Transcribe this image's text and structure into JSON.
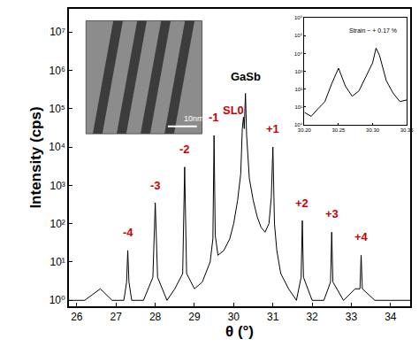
{
  "chart_data": [
    {
      "type": "line",
      "x_label": "θ (°)",
      "y_label": "Intensity (cps)",
      "log": "y",
      "color": "#000000",
      "x": [
        25.8,
        26.2,
        26.6,
        26.9,
        27.2,
        27.27,
        27.3,
        27.33,
        27.4,
        27.7,
        27.94,
        28.0,
        28.06,
        28.3,
        28.5,
        28.7,
        28.75,
        28.8,
        29.0,
        29.2,
        29.4,
        29.47,
        29.5,
        29.53,
        29.6,
        29.75,
        29.9,
        30.0,
        30.1,
        30.18,
        30.22,
        30.25,
        30.27,
        30.3,
        30.33,
        30.4,
        30.5,
        30.6,
        30.7,
        30.8,
        30.9,
        30.96,
        31.0,
        31.04,
        31.1,
        31.2,
        31.4,
        31.6,
        31.72,
        31.75,
        31.78,
        32.0,
        32.3,
        32.47,
        32.5,
        32.53,
        32.8,
        33.1,
        33.22,
        33.25,
        33.28,
        33.6,
        34.0,
        34.5
      ],
      "values": [
        1,
        1,
        2,
        1,
        1,
        3,
        20,
        3,
        1,
        1,
        4,
        350,
        4,
        1,
        2,
        5,
        3000,
        5,
        2,
        3,
        10,
        40,
        20000,
        50,
        15,
        20,
        40,
        100,
        400,
        2000,
        30000,
        60000,
        30000,
        250000,
        20000,
        1500,
        400,
        150,
        80,
        60,
        100,
        500,
        10000,
        100,
        20,
        5,
        2,
        1,
        4,
        120,
        4,
        1,
        1,
        3,
        60,
        3,
        1,
        2,
        2,
        15,
        2,
        1,
        1,
        1
      ],
      "xlim": [
        25.8,
        34.5
      ],
      "ylim": [
        0.7,
        40000000
      ],
      "xticks": [
        26,
        27,
        28,
        29,
        30,
        31,
        32,
        33,
        34
      ],
      "yticks": [
        {
          "value": 1,
          "label": "10⁰"
        },
        {
          "value": 10,
          "label": "10¹"
        },
        {
          "value": 100,
          "label": "10²"
        },
        {
          "value": 1000,
          "label": "10³"
        },
        {
          "value": 10000,
          "label": "10⁴"
        },
        {
          "value": 100000,
          "label": "10⁵"
        },
        {
          "value": 1000000,
          "label": "10⁶"
        },
        {
          "value": 10000000,
          "label": "10⁷"
        }
      ],
      "annotations": [
        {
          "text": "-4",
          "x": 27.3,
          "y": 60,
          "color": "#cc0000"
        },
        {
          "text": "-3",
          "x": 28.0,
          "y": 1000,
          "color": "#cc0000"
        },
        {
          "text": "-2",
          "x": 28.75,
          "y": 9000,
          "color": "#cc0000"
        },
        {
          "text": "-1",
          "x": 29.5,
          "y": 60000,
          "color": "#cc0000"
        },
        {
          "text": "SL0",
          "x": 30.0,
          "y": 90000,
          "color": "#cc0000"
        },
        {
          "text": "GaSb",
          "x": 30.3,
          "y": 700000,
          "color": "#000000"
        },
        {
          "text": "+1",
          "x": 31.0,
          "y": 30000,
          "color": "#cc0000"
        },
        {
          "text": "+2",
          "x": 31.75,
          "y": 350,
          "color": "#cc0000"
        },
        {
          "text": "+3",
          "x": 32.5,
          "y": 180,
          "color": "#cc0000"
        },
        {
          "text": "+4",
          "x": 33.25,
          "y": 45,
          "color": "#cc0000"
        }
      ]
    },
    {
      "type": "line",
      "log": "y",
      "color": "#000000",
      "x": [
        30.2,
        30.21,
        30.22,
        30.23,
        30.24,
        30.25,
        30.26,
        30.27,
        30.28,
        30.29,
        30.3,
        30.305,
        30.31,
        30.32,
        30.33,
        30.34,
        30.35
      ],
      "values": [
        5,
        3,
        8,
        20,
        200,
        1500,
        150,
        40,
        80,
        500,
        3000,
        20000,
        8000,
        300,
        60,
        20,
        25
      ],
      "xlim": [
        30.2,
        30.35
      ],
      "ylim": [
        1,
        1000000
      ],
      "xticks": [
        {
          "value": 30.2,
          "label": "30.20"
        },
        {
          "value": 30.25,
          "label": "30.25"
        },
        {
          "value": 30.3,
          "label": "30.30"
        },
        {
          "value": 30.35,
          "label": "30.35"
        }
      ],
      "yticks": [
        {
          "value": 1,
          "label": "10⁰"
        },
        {
          "value": 10,
          "label": "10¹"
        },
        {
          "value": 100,
          "label": "10²"
        },
        {
          "value": 1000,
          "label": "10³"
        },
        {
          "value": 10000,
          "label": "10⁴"
        },
        {
          "value": 100000,
          "label": "10⁵"
        },
        {
          "value": 1000000,
          "label": "10⁶"
        }
      ],
      "annotations": [
        {
          "text": "Strain ~ + 0.17 %",
          "x": 30.3,
          "y": 200000,
          "color": "#000000"
        }
      ]
    }
  ],
  "inset_image": {
    "scale_bar_label": "10nm"
  }
}
